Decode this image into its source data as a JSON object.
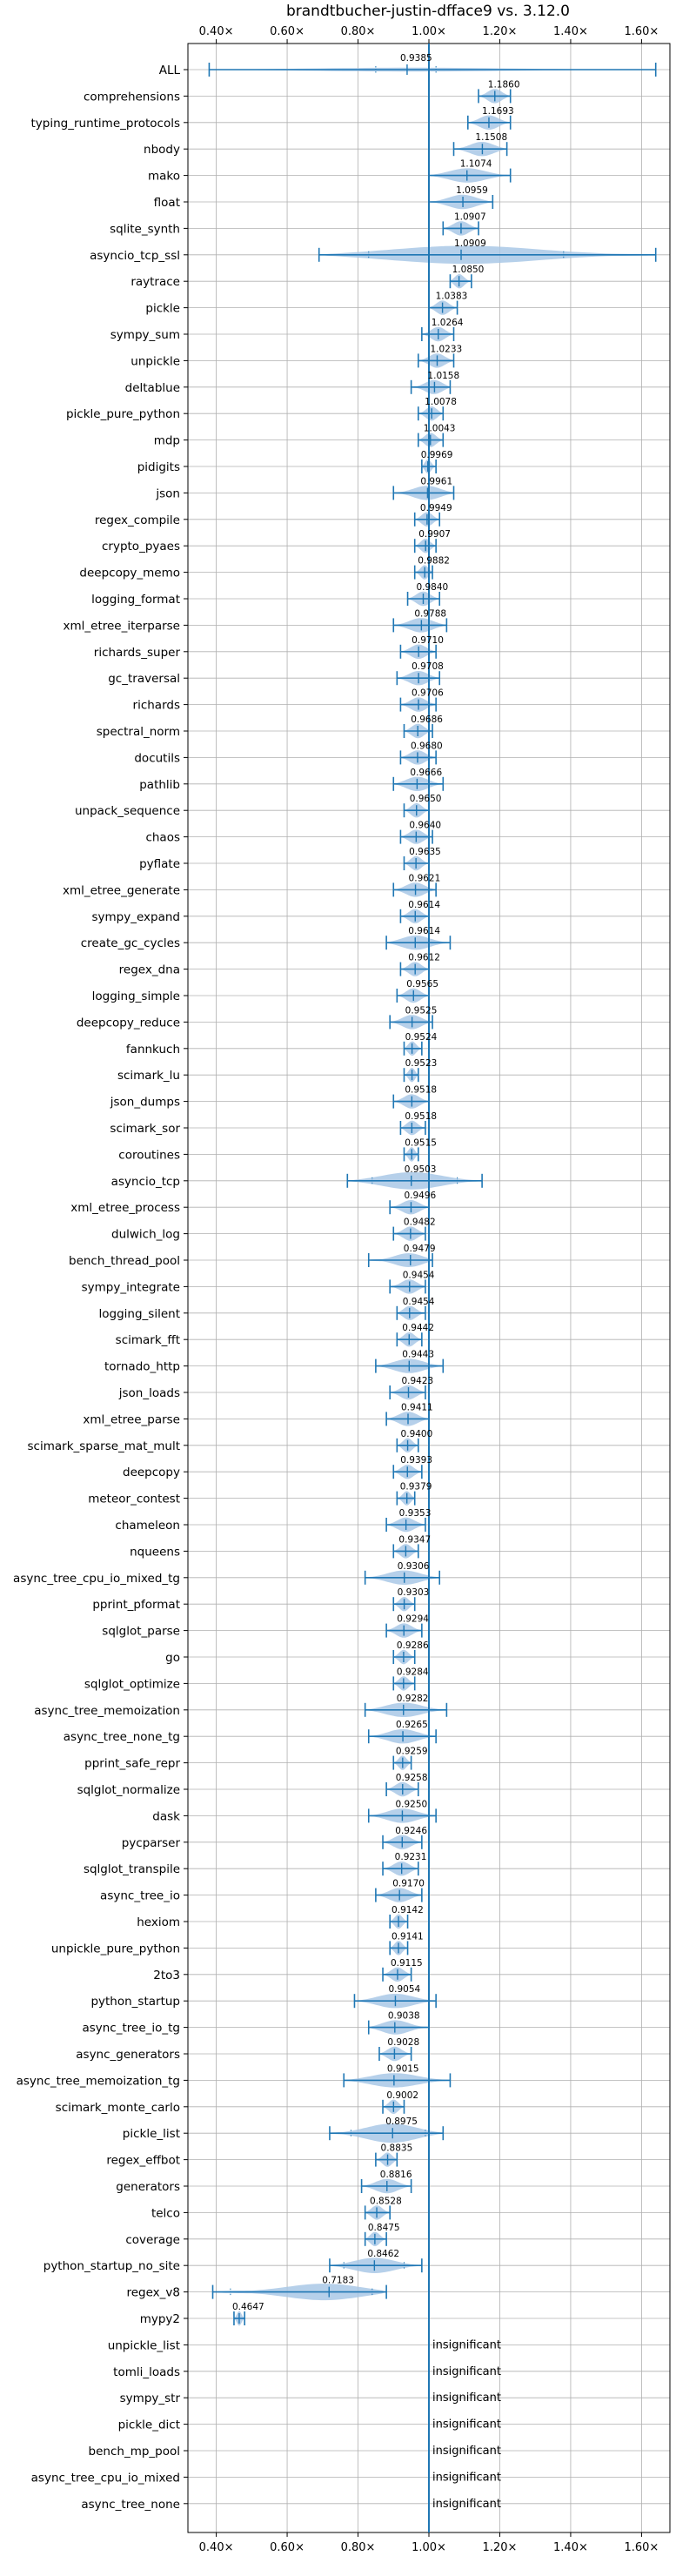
{
  "chart_data": {
    "type": "violin",
    "title": "brandtbucher-justin-dfface9 vs. 3.12.0",
    "xlim": [
      0.32,
      1.68
    ],
    "xticks": [
      0.4,
      0.6,
      0.8,
      1.0,
      1.2,
      1.4,
      1.6
    ],
    "xtick_labels": [
      "0.40×",
      "0.60×",
      "0.80×",
      "1.00×",
      "1.20×",
      "1.40×",
      "1.60×"
    ],
    "reference_line": 1.0,
    "grid": true,
    "colors": {
      "violin": "#a9c8e6",
      "whisker": "#1f77b4",
      "reference": "#1f77b4",
      "grid": "#b0b0b0"
    },
    "insignificant_text": "insignificant",
    "benchmarks": [
      {
        "name": "ALL",
        "mean": "0.9385",
        "center": 0.9385,
        "min": 0.38,
        "max": 1.64,
        "inner_lo": 0.85,
        "inner_hi": 1.02,
        "w": 0.2
      },
      {
        "name": "comprehensions",
        "mean": "1.1860",
        "center": 1.186,
        "min": 1.14,
        "max": 1.23
      },
      {
        "name": "typing_runtime_protocols",
        "mean": "1.1693",
        "center": 1.1693,
        "min": 1.11,
        "max": 1.23
      },
      {
        "name": "nbody",
        "mean": "1.1508",
        "center": 1.1508,
        "min": 1.07,
        "max": 1.22
      },
      {
        "name": "mako",
        "mean": "1.1074",
        "center": 1.1074,
        "min": 1.0,
        "max": 1.23
      },
      {
        "name": "float",
        "mean": "1.0959",
        "center": 1.0959,
        "min": 1.0,
        "max": 1.18
      },
      {
        "name": "sqlite_synth",
        "mean": "1.0907",
        "center": 1.0907,
        "min": 1.04,
        "max": 1.14
      },
      {
        "name": "asyncio_tcp_ssl",
        "mean": "1.0909",
        "center": 1.0909,
        "min": 0.69,
        "max": 1.64,
        "inner_lo": 0.83,
        "inner_hi": 1.38,
        "w": 0.95
      },
      {
        "name": "raytrace",
        "mean": "1.0850",
        "center": 1.085,
        "min": 1.06,
        "max": 1.12
      },
      {
        "name": "pickle",
        "mean": "1.0383",
        "center": 1.0383,
        "min": 1.0,
        "max": 1.08
      },
      {
        "name": "sympy_sum",
        "mean": "1.0264",
        "center": 1.0264,
        "min": 0.98,
        "max": 1.07
      },
      {
        "name": "unpickle",
        "mean": "1.0233",
        "center": 1.0233,
        "min": 0.97,
        "max": 1.07
      },
      {
        "name": "deltablue",
        "mean": "1.0158",
        "center": 1.0158,
        "min": 0.95,
        "max": 1.06
      },
      {
        "name": "pickle_pure_python",
        "mean": "1.0078",
        "center": 1.0078,
        "min": 0.97,
        "max": 1.04
      },
      {
        "name": "mdp",
        "mean": "1.0043",
        "center": 1.0043,
        "min": 0.97,
        "max": 1.04
      },
      {
        "name": "pidigits",
        "mean": "0.9969",
        "center": 0.9969,
        "min": 0.98,
        "max": 1.02
      },
      {
        "name": "json",
        "mean": "0.9961",
        "center": 0.9961,
        "min": 0.9,
        "max": 1.07
      },
      {
        "name": "regex_compile",
        "mean": "0.9949",
        "center": 0.9949,
        "min": 0.96,
        "max": 1.03
      },
      {
        "name": "crypto_pyaes",
        "mean": "0.9907",
        "center": 0.9907,
        "min": 0.96,
        "max": 1.02
      },
      {
        "name": "deepcopy_memo",
        "mean": "0.9882",
        "center": 0.9882,
        "min": 0.96,
        "max": 1.01
      },
      {
        "name": "logging_format",
        "mean": "0.9840",
        "center": 0.984,
        "min": 0.94,
        "max": 1.03
      },
      {
        "name": "xml_etree_iterparse",
        "mean": "0.9788",
        "center": 0.9788,
        "min": 0.9,
        "max": 1.05
      },
      {
        "name": "richards_super",
        "mean": "0.9710",
        "center": 0.971,
        "min": 0.92,
        "max": 1.02
      },
      {
        "name": "gc_traversal",
        "mean": "0.9708",
        "center": 0.9708,
        "min": 0.91,
        "max": 1.03
      },
      {
        "name": "richards",
        "mean": "0.9706",
        "center": 0.9706,
        "min": 0.92,
        "max": 1.02
      },
      {
        "name": "spectral_norm",
        "mean": "0.9686",
        "center": 0.9686,
        "min": 0.93,
        "max": 1.01
      },
      {
        "name": "docutils",
        "mean": "0.9680",
        "center": 0.968,
        "min": 0.92,
        "max": 1.02
      },
      {
        "name": "pathlib",
        "mean": "0.9666",
        "center": 0.9666,
        "min": 0.9,
        "max": 1.04
      },
      {
        "name": "unpack_sequence",
        "mean": "0.9650",
        "center": 0.965,
        "min": 0.93,
        "max": 1.0
      },
      {
        "name": "chaos",
        "mean": "0.9640",
        "center": 0.964,
        "min": 0.92,
        "max": 1.01
      },
      {
        "name": "pyflate",
        "mean": "0.9635",
        "center": 0.9635,
        "min": 0.93,
        "max": 1.0
      },
      {
        "name": "xml_etree_generate",
        "mean": "0.9621",
        "center": 0.9621,
        "min": 0.9,
        "max": 1.02
      },
      {
        "name": "sympy_expand",
        "mean": "0.9614",
        "center": 0.9614,
        "min": 0.92,
        "max": 1.0
      },
      {
        "name": "create_gc_cycles",
        "mean": "0.9614",
        "center": 0.9614,
        "min": 0.88,
        "max": 1.06
      },
      {
        "name": "regex_dna",
        "mean": "0.9612",
        "center": 0.9612,
        "min": 0.92,
        "max": 1.0
      },
      {
        "name": "logging_simple",
        "mean": "0.9565",
        "center": 0.9565,
        "min": 0.91,
        "max": 1.0
      },
      {
        "name": "deepcopy_reduce",
        "mean": "0.9525",
        "center": 0.9525,
        "min": 0.89,
        "max": 1.01
      },
      {
        "name": "fannkuch",
        "mean": "0.9524",
        "center": 0.9524,
        "min": 0.93,
        "max": 0.98
      },
      {
        "name": "scimark_lu",
        "mean": "0.9523",
        "center": 0.9523,
        "min": 0.93,
        "max": 0.97
      },
      {
        "name": "json_dumps",
        "mean": "0.9518",
        "center": 0.9518,
        "min": 0.9,
        "max": 1.0
      },
      {
        "name": "scimark_sor",
        "mean": "0.9518",
        "center": 0.9518,
        "min": 0.92,
        "max": 0.99
      },
      {
        "name": "coroutines",
        "mean": "0.9515",
        "center": 0.9515,
        "min": 0.93,
        "max": 0.97
      },
      {
        "name": "asyncio_tcp",
        "mean": "0.9503",
        "center": 0.9503,
        "min": 0.77,
        "max": 1.15,
        "inner_lo": 0.84,
        "inner_hi": 1.08,
        "w": 0.9
      },
      {
        "name": "xml_etree_process",
        "mean": "0.9496",
        "center": 0.9496,
        "min": 0.89,
        "max": 1.0
      },
      {
        "name": "dulwich_log",
        "mean": "0.9482",
        "center": 0.9482,
        "min": 0.9,
        "max": 0.99
      },
      {
        "name": "bench_thread_pool",
        "mean": "0.9479",
        "center": 0.9479,
        "min": 0.83,
        "max": 1.01
      },
      {
        "name": "sympy_integrate",
        "mean": "0.9454",
        "center": 0.9454,
        "min": 0.89,
        "max": 0.99
      },
      {
        "name": "logging_silent",
        "mean": "0.9454",
        "center": 0.9454,
        "min": 0.91,
        "max": 0.99
      },
      {
        "name": "scimark_fft",
        "mean": "0.9442",
        "center": 0.9442,
        "min": 0.91,
        "max": 0.98
      },
      {
        "name": "tornado_http",
        "mean": "0.9443",
        "center": 0.9443,
        "min": 0.85,
        "max": 1.04
      },
      {
        "name": "json_loads",
        "mean": "0.9423",
        "center": 0.9423,
        "min": 0.89,
        "max": 0.99
      },
      {
        "name": "xml_etree_parse",
        "mean": "0.9411",
        "center": 0.9411,
        "min": 0.88,
        "max": 1.0
      },
      {
        "name": "scimark_sparse_mat_mult",
        "mean": "0.9400",
        "center": 0.94,
        "min": 0.91,
        "max": 0.97
      },
      {
        "name": "deepcopy",
        "mean": "0.9393",
        "center": 0.9393,
        "min": 0.9,
        "max": 0.98
      },
      {
        "name": "meteor_contest",
        "mean": "0.9379",
        "center": 0.9379,
        "min": 0.91,
        "max": 0.96
      },
      {
        "name": "chameleon",
        "mean": "0.9353",
        "center": 0.9353,
        "min": 0.88,
        "max": 0.99
      },
      {
        "name": "nqueens",
        "mean": "0.9347",
        "center": 0.9347,
        "min": 0.9,
        "max": 0.97
      },
      {
        "name": "async_tree_cpu_io_mixed_tg",
        "mean": "0.9306",
        "center": 0.9306,
        "min": 0.82,
        "max": 1.03
      },
      {
        "name": "pprint_pformat",
        "mean": "0.9303",
        "center": 0.9303,
        "min": 0.9,
        "max": 0.96
      },
      {
        "name": "sqlglot_parse",
        "mean": "0.9294",
        "center": 0.9294,
        "min": 0.88,
        "max": 0.98
      },
      {
        "name": "go",
        "mean": "0.9286",
        "center": 0.9286,
        "min": 0.9,
        "max": 0.96
      },
      {
        "name": "sqlglot_optimize",
        "mean": "0.9284",
        "center": 0.9284,
        "min": 0.9,
        "max": 0.96
      },
      {
        "name": "async_tree_memoization",
        "mean": "0.9282",
        "center": 0.9282,
        "min": 0.82,
        "max": 1.05
      },
      {
        "name": "async_tree_none_tg",
        "mean": "0.9265",
        "center": 0.9265,
        "min": 0.83,
        "max": 1.02
      },
      {
        "name": "pprint_safe_repr",
        "mean": "0.9259",
        "center": 0.9259,
        "min": 0.9,
        "max": 0.95
      },
      {
        "name": "sqlglot_normalize",
        "mean": "0.9258",
        "center": 0.9258,
        "min": 0.88,
        "max": 0.97
      },
      {
        "name": "dask",
        "mean": "0.9250",
        "center": 0.925,
        "min": 0.83,
        "max": 1.02
      },
      {
        "name": "pycparser",
        "mean": "0.9246",
        "center": 0.9246,
        "min": 0.87,
        "max": 0.98
      },
      {
        "name": "sqlglot_transpile",
        "mean": "0.9231",
        "center": 0.9231,
        "min": 0.87,
        "max": 0.97
      },
      {
        "name": "async_tree_io",
        "mean": "0.9170",
        "center": 0.917,
        "min": 0.85,
        "max": 0.98
      },
      {
        "name": "hexiom",
        "mean": "0.9142",
        "center": 0.9142,
        "min": 0.89,
        "max": 0.94
      },
      {
        "name": "unpickle_pure_python",
        "mean": "0.9141",
        "center": 0.9141,
        "min": 0.89,
        "max": 0.94
      },
      {
        "name": "2to3",
        "mean": "0.9115",
        "center": 0.9115,
        "min": 0.87,
        "max": 0.95
      },
      {
        "name": "python_startup",
        "mean": "0.9054",
        "center": 0.9054,
        "min": 0.79,
        "max": 1.02
      },
      {
        "name": "async_tree_io_tg",
        "mean": "0.9038",
        "center": 0.9038,
        "min": 0.83,
        "max": 1.0
      },
      {
        "name": "async_generators",
        "mean": "0.9028",
        "center": 0.9028,
        "min": 0.86,
        "max": 0.95
      },
      {
        "name": "async_tree_memoization_tg",
        "mean": "0.9015",
        "center": 0.9015,
        "min": 0.76,
        "max": 1.06
      },
      {
        "name": "scimark_monte_carlo",
        "mean": "0.9002",
        "center": 0.9002,
        "min": 0.87,
        "max": 0.93
      },
      {
        "name": "pickle_list",
        "mean": "0.8975",
        "center": 0.8975,
        "min": 0.72,
        "max": 1.04,
        "inner_lo": 0.78,
        "inner_hi": 0.99,
        "w": 1.0
      },
      {
        "name": "regex_effbot",
        "mean": "0.8835",
        "center": 0.8835,
        "min": 0.85,
        "max": 0.91
      },
      {
        "name": "generators",
        "mean": "0.8816",
        "center": 0.8816,
        "min": 0.81,
        "max": 0.95
      },
      {
        "name": "telco",
        "mean": "0.8528",
        "center": 0.8528,
        "min": 0.82,
        "max": 0.89
      },
      {
        "name": "coverage",
        "mean": "0.8475",
        "center": 0.8475,
        "min": 0.82,
        "max": 0.88
      },
      {
        "name": "python_startup_no_site",
        "mean": "0.8462",
        "center": 0.8462,
        "min": 0.72,
        "max": 0.98,
        "inner_lo": 0.76,
        "inner_hi": 0.93,
        "w": 0.8
      },
      {
        "name": "regex_v8",
        "mean": "0.7183",
        "center": 0.7183,
        "min": 0.39,
        "max": 0.88,
        "inner_lo": 0.44,
        "inner_hi": 0.84,
        "w": 0.9
      },
      {
        "name": "mypy2",
        "mean": "0.4647",
        "center": 0.4647,
        "min": 0.45,
        "max": 0.48
      },
      {
        "name": "unpickle_list",
        "insignificant": true
      },
      {
        "name": "tomli_loads",
        "insignificant": true
      },
      {
        "name": "sympy_str",
        "insignificant": true
      },
      {
        "name": "pickle_dict",
        "insignificant": true
      },
      {
        "name": "bench_mp_pool",
        "insignificant": true
      },
      {
        "name": "async_tree_cpu_io_mixed",
        "insignificant": true
      },
      {
        "name": "async_tree_none",
        "insignificant": true
      }
    ]
  }
}
